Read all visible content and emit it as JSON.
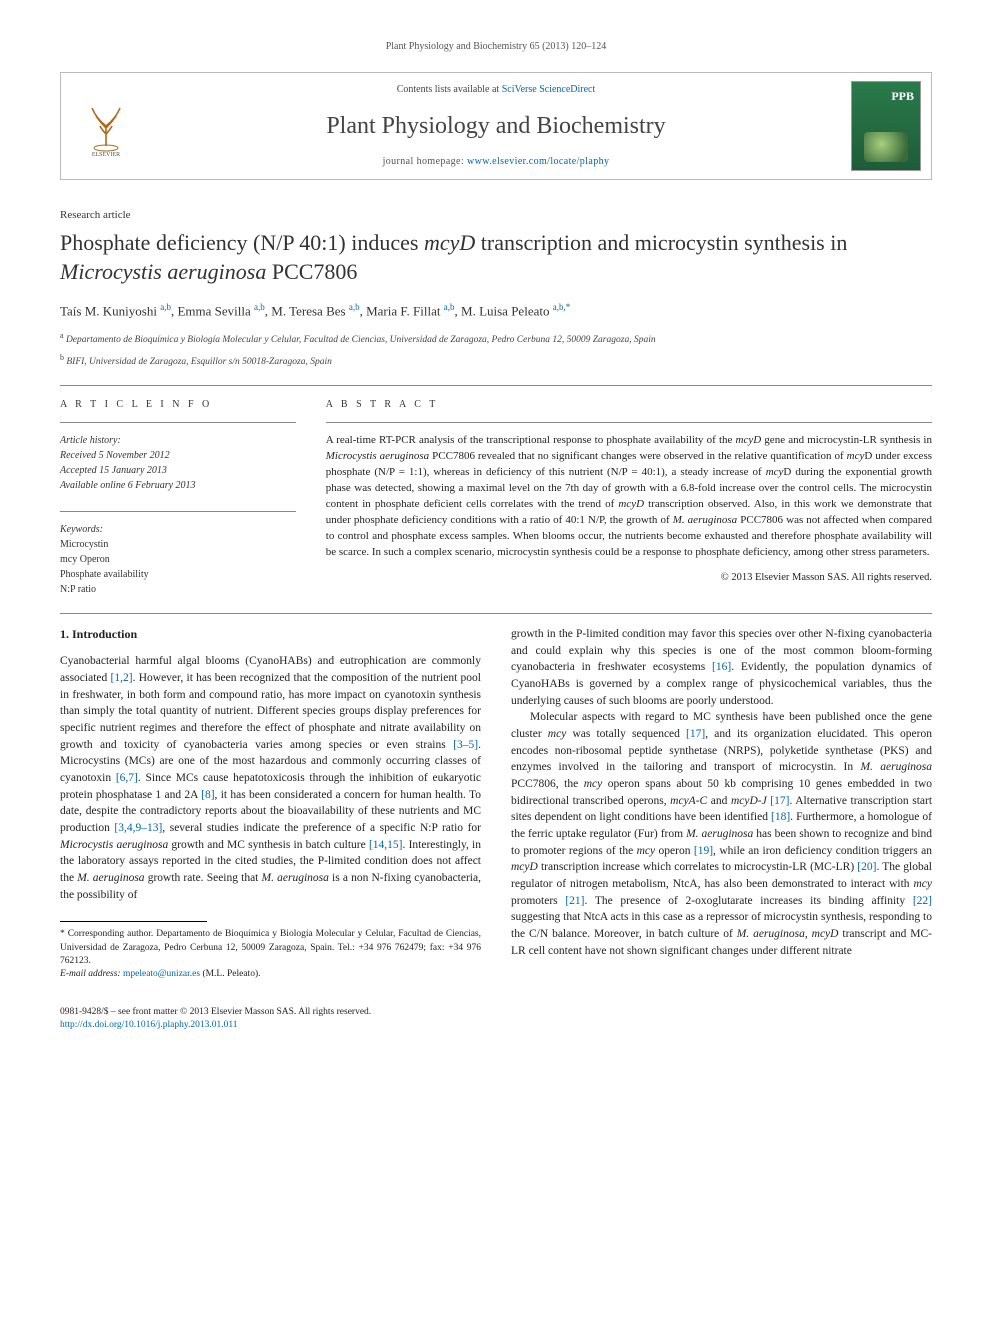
{
  "running_head": "Plant Physiology and Biochemistry 65 (2013) 120–124",
  "header": {
    "contents_prefix": "Contents lists available at ",
    "contents_link": "SciVerse ScienceDirect",
    "journal_title": "Plant Physiology and Biochemistry",
    "homepage_prefix": "journal homepage: ",
    "homepage_link": "www.elsevier.com/locate/plaphy",
    "cover_badge": "PPB"
  },
  "article_type": "Research article",
  "title_plain_pre": "Phosphate deficiency (N/P 40:1) induces ",
  "title_ital_1": "mcyD",
  "title_mid": " transcription and microcystin synthesis in ",
  "title_ital_2": "Microcystis aeruginosa",
  "title_post": " PCC7806",
  "authors_html": "Taís M. Kuniyoshi|a,b|, Emma Sevilla|a,b|, M. Teresa Bes|a,b|, Maria F. Fillat|a,b|, M. Luisa Peleato|a,b,*|",
  "authors": [
    {
      "name": "Taís M. Kuniyoshi",
      "aff": "a,b"
    },
    {
      "name": "Emma Sevilla",
      "aff": "a,b"
    },
    {
      "name": "M. Teresa Bes",
      "aff": "a,b"
    },
    {
      "name": "Maria F. Fillat",
      "aff": "a,b"
    },
    {
      "name": "M. Luisa Peleato",
      "aff": "a,b,*"
    }
  ],
  "affiliations": [
    {
      "sup": "a",
      "text": "Departamento de Bioquímica y Biología Molecular y Celular, Facultad de Ciencias, Universidad de Zaragoza, Pedro Cerbuna 12, 50009 Zaragoza, Spain"
    },
    {
      "sup": "b",
      "text": "BIFI, Universidad de Zaragoza, Esquillor s/n 50018-Zaragoza, Spain"
    }
  ],
  "info_left": {
    "head": "A R T I C L E   I N F O",
    "history_label": "Article history:",
    "history_lines": [
      "Received 5 November 2012",
      "Accepted 15 January 2013",
      "Available online 6 February 2013"
    ],
    "keywords_label": "Keywords:",
    "keywords": [
      "Microcystin",
      "mcy Operon",
      "Phosphate availability",
      "N:P ratio"
    ]
  },
  "abstract": {
    "head": "A B S T R A C T",
    "text_parts": [
      "A real-time RT-PCR analysis of the transcriptional response to phosphate availability of the ",
      {
        "ital": "mcyD"
      },
      " gene and microcystin-LR synthesis in ",
      {
        "ital": "Microcystis aeruginosa"
      },
      " PCC7806 revealed that no significant changes were observed in the relative quantification of ",
      {
        "ital": "mcy"
      },
      "D under excess phosphate (N/P = 1:1), whereas in deficiency of this nutrient (N/P = 40:1), a steady increase of ",
      {
        "ital": "mcy"
      },
      "D during the exponential growth phase was detected, showing a maximal level on the 7th day of growth with a 6.8-fold increase over the control cells. The microcystin content in phosphate deficient cells correlates with the trend of ",
      {
        "ital": "mcyD"
      },
      " transcription observed. Also, in this work we demonstrate that under phosphate deficiency conditions with a ratio of 40:1 N/P, the growth of ",
      {
        "ital": "M. aeruginosa"
      },
      " PCC7806 was not affected when compared to control and phosphate excess samples. When blooms occur, the nutrients become exhausted and therefore phosphate availability will be scarce. In such a complex scenario, microcystin synthesis could be a response to phosphate deficiency, among other stress parameters."
    ],
    "copyright": "© 2013 Elsevier Masson SAS. All rights reserved."
  },
  "body": {
    "heading": "1. Introduction",
    "col1": "Cyanobacterial harmful algal blooms (CyanoHABs) and eutrophication are commonly associated [1,2]. However, it has been recognized that the composition of the nutrient pool in freshwater, in both form and compound ratio, has more impact on cyanotoxin synthesis than simply the total quantity of nutrient. Different species groups display preferences for specific nutrient regimes and therefore the effect of phosphate and nitrate availability on growth and toxicity of cyanobacteria varies among species or even strains [3–5]. Microcystins (MCs) are one of the most hazardous and commonly occurring classes of cyanotoxin [6,7]. Since MCs cause hepatotoxicosis through the inhibition of eukaryotic protein phosphatase 1 and 2A [8], it has been considerated a concern for human health. To date, despite the contradictory reports about the bioavailability of these nutrients and MC production [3,4,9–13], several studies indicate the preference of a specific N:P ratio for |Microcystis aeruginosa| growth and MC synthesis in batch culture [14,15]. Interestingly, in the laboratory assays reported in the cited studies, the P-limited condition does not affect the |M. aeruginosa| growth rate. Seeing that |M. aeruginosa| is a non N-fixing cyanobacteria, the possibility of",
    "col2": "growth in the P-limited condition may favor this species over other N-fixing cyanobacteria and could explain why this species is one of the most common bloom-forming cyanobacteria in freshwater ecosystems [16]. Evidently, the population dynamics of CyanoHABs is governed by a complex range of physicochemical variables, thus the underlying causes of such blooms are poorly understood.\n\nMolecular aspects with regard to MC synthesis have been published once the gene cluster |mcy| was totally sequenced [17], and its organization elucidated. This operon encodes non-ribosomal peptide synthetase (NRPS), polyketide synthetase (PKS) and enzymes involved in the tailoring and transport of microcystin. In |M. aeruginosa| PCC7806, the |mcy| operon spans about 50 kb comprising 10 genes embedded in two bidirectional transcribed operons, |mcyA-C| and |mcyD-J| [17]. Alternative transcription start sites dependent on light conditions have been identified [18]. Furthermore, a homologue of the ferric uptake regulator (Fur) from |M. aeruginosa| has been shown to recognize and bind to promoter regions of the |mcy| operon [19], while an iron deficiency condition triggers an |mcyD| transcription increase which correlates to microcystin-LR (MC-LR) [20]. The global regulator of nitrogen metabolism, NtcA, has also been demonstrated to interact with |mcy| promoters [21]. The presence of 2-oxoglutarate increases its binding affinity [22] suggesting that NtcA acts in this case as a repressor of microcystin synthesis, responding to the C/N balance. Moreover, in batch culture of |M. aeruginosa|, |mcyD| transcript and MC-LR cell content have not shown significant changes under different nitrate"
  },
  "footnotes": {
    "corr": "* Corresponding author. Departamento de Bioquímica y Biología Molecular y Celular, Facultad de Ciencias, Universidad de Zaragoza, Pedro Cerbuna 12, 50009 Zaragoza, Spain. Tel.: +34 976 762479; fax: +34 976 762123.",
    "email_label": "E-mail address: ",
    "email": "mpeleato@unizar.es",
    "email_who": " (M.L. Peleato)."
  },
  "bottom": {
    "left_line1": "0981-9428/$ – see front matter © 2013 Elsevier Masson SAS. All rights reserved.",
    "doi": "http://dx.doi.org/10.1016/j.plaphy.2013.01.011"
  },
  "colors": {
    "link": "#0066aa",
    "text": "#222222",
    "rule": "#888888",
    "cover_bg_top": "#2a7a4a",
    "cover_bg_bot": "#1e5c38"
  }
}
